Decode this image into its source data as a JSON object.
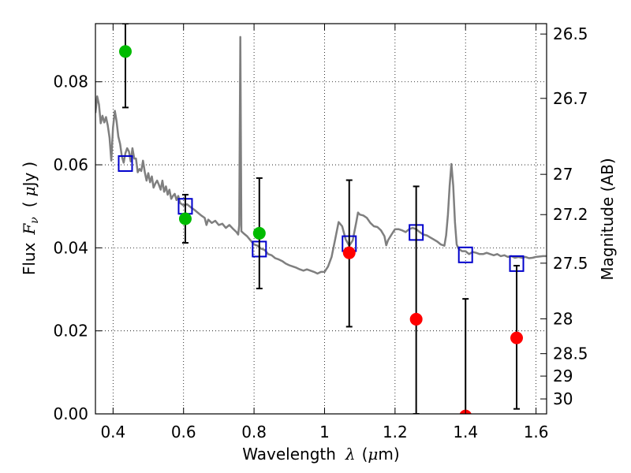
{
  "chart_data": {
    "type": "scatter",
    "xlabel_parts": [
      "Wavelength",
      "λ",
      "(",
      "μ",
      "m)"
    ],
    "ylabel_parts": [
      "Flux",
      "F",
      "ν",
      "(",
      "μ",
      "Jy",
      ")"
    ],
    "y2label": "Magnitude (AB)",
    "xlim": [
      0.35,
      1.63
    ],
    "ylim": [
      0.0,
      0.094
    ],
    "grid": true,
    "x_ticks": [
      {
        "value": 0.4,
        "label": "0.4"
      },
      {
        "value": 0.6,
        "label": "0.6"
      },
      {
        "value": 0.8,
        "label": "0.8"
      },
      {
        "value": 1.0,
        "label": "1"
      },
      {
        "value": 1.2,
        "label": "1.2"
      },
      {
        "value": 1.4,
        "label": "1.4"
      },
      {
        "value": 1.6,
        "label": "1.6"
      }
    ],
    "y_ticks": [
      {
        "value": 0.0,
        "label": "0.00"
      },
      {
        "value": 0.02,
        "label": "0.02"
      },
      {
        "value": 0.04,
        "label": "0.04"
      },
      {
        "value": 0.06,
        "label": "0.06"
      },
      {
        "value": 0.08,
        "label": "0.08"
      }
    ],
    "y2_ticks": [
      {
        "flux": 0.0915,
        "label": "26.5"
      },
      {
        "flux": 0.076,
        "label": "26.7"
      },
      {
        "flux": 0.0577,
        "label": "27"
      },
      {
        "flux": 0.048,
        "label": "27.2"
      },
      {
        "flux": 0.0363,
        "label": "27.5"
      },
      {
        "flux": 0.0229,
        "label": "28"
      },
      {
        "flux": 0.0145,
        "label": "28.5"
      },
      {
        "flux": 0.0091,
        "label": "29"
      },
      {
        "flux": 0.0036,
        "label": "30"
      }
    ],
    "series": [
      {
        "kind": "line",
        "color": "#7f7f7f",
        "points": [
          [
            0.35,
            0.0725
          ],
          [
            0.355,
            0.0765
          ],
          [
            0.36,
            0.0745
          ],
          [
            0.365,
            0.07
          ],
          [
            0.37,
            0.0718
          ],
          [
            0.375,
            0.0702
          ],
          [
            0.38,
            0.0715
          ],
          [
            0.385,
            0.0695
          ],
          [
            0.39,
            0.0665
          ],
          [
            0.395,
            0.061
          ],
          [
            0.4,
            0.069
          ],
          [
            0.405,
            0.073
          ],
          [
            0.41,
            0.0705
          ],
          [
            0.415,
            0.0668
          ],
          [
            0.42,
            0.065
          ],
          [
            0.425,
            0.062
          ],
          [
            0.43,
            0.0605
          ],
          [
            0.435,
            0.0628
          ],
          [
            0.44,
            0.064
          ],
          [
            0.445,
            0.0632
          ],
          [
            0.45,
            0.0608
          ],
          [
            0.455,
            0.064
          ],
          [
            0.46,
            0.0615
          ],
          [
            0.465,
            0.0615
          ],
          [
            0.47,
            0.0582
          ],
          [
            0.475,
            0.059
          ],
          [
            0.48,
            0.0585
          ],
          [
            0.485,
            0.061
          ],
          [
            0.49,
            0.0582
          ],
          [
            0.495,
            0.0562
          ],
          [
            0.5,
            0.058
          ],
          [
            0.505,
            0.0558
          ],
          [
            0.51,
            0.0572
          ],
          [
            0.515,
            0.0545
          ],
          [
            0.52,
            0.0555
          ],
          [
            0.525,
            0.0562
          ],
          [
            0.53,
            0.0552
          ],
          [
            0.535,
            0.054
          ],
          [
            0.54,
            0.0562
          ],
          [
            0.545,
            0.0535
          ],
          [
            0.55,
            0.0548
          ],
          [
            0.555,
            0.0528
          ],
          [
            0.56,
            0.054
          ],
          [
            0.565,
            0.0518
          ],
          [
            0.57,
            0.0525
          ],
          [
            0.575,
            0.053
          ],
          [
            0.58,
            0.0515
          ],
          [
            0.585,
            0.0525
          ],
          [
            0.59,
            0.0508
          ],
          [
            0.6,
            0.0502
          ],
          [
            0.61,
            0.0505
          ],
          [
            0.62,
            0.0498
          ],
          [
            0.63,
            0.0492
          ],
          [
            0.64,
            0.0485
          ],
          [
            0.65,
            0.0478
          ],
          [
            0.66,
            0.0472
          ],
          [
            0.665,
            0.0455
          ],
          [
            0.67,
            0.0468
          ],
          [
            0.68,
            0.046
          ],
          [
            0.69,
            0.0465
          ],
          [
            0.7,
            0.0455
          ],
          [
            0.71,
            0.0458
          ],
          [
            0.72,
            0.0448
          ],
          [
            0.73,
            0.0455
          ],
          [
            0.74,
            0.0446
          ],
          [
            0.75,
            0.0438
          ],
          [
            0.755,
            0.0432
          ],
          [
            0.758,
            0.0455
          ],
          [
            0.761,
            0.0908
          ],
          [
            0.764,
            0.044
          ],
          [
            0.77,
            0.0435
          ],
          [
            0.78,
            0.0428
          ],
          [
            0.79,
            0.0418
          ],
          [
            0.8,
            0.0408
          ],
          [
            0.81,
            0.0405
          ],
          [
            0.82,
            0.0398
          ],
          [
            0.83,
            0.0395
          ],
          [
            0.84,
            0.0385
          ],
          [
            0.85,
            0.0382
          ],
          [
            0.86,
            0.0375
          ],
          [
            0.87,
            0.0372
          ],
          [
            0.88,
            0.0368
          ],
          [
            0.89,
            0.0362
          ],
          [
            0.9,
            0.0358
          ],
          [
            0.91,
            0.0355
          ],
          [
            0.92,
            0.0352
          ],
          [
            0.93,
            0.0348
          ],
          [
            0.94,
            0.0345
          ],
          [
            0.95,
            0.0348
          ],
          [
            0.96,
            0.0345
          ],
          [
            0.97,
            0.0342
          ],
          [
            0.98,
            0.0338
          ],
          [
            0.99,
            0.0342
          ],
          [
            1.0,
            0.0342
          ],
          [
            1.01,
            0.0355
          ],
          [
            1.02,
            0.0378
          ],
          [
            1.03,
            0.042
          ],
          [
            1.04,
            0.0462
          ],
          [
            1.05,
            0.0452
          ],
          [
            1.06,
            0.042
          ],
          [
            1.07,
            0.0405
          ],
          [
            1.08,
            0.0418
          ],
          [
            1.09,
            0.0462
          ],
          [
            1.095,
            0.0485
          ],
          [
            1.1,
            0.048
          ],
          [
            1.11,
            0.0478
          ],
          [
            1.12,
            0.0472
          ],
          [
            1.13,
            0.046
          ],
          [
            1.14,
            0.0452
          ],
          [
            1.15,
            0.045
          ],
          [
            1.16,
            0.0442
          ],
          [
            1.17,
            0.0428
          ],
          [
            1.175,
            0.0406
          ],
          [
            1.18,
            0.0418
          ],
          [
            1.19,
            0.0432
          ],
          [
            1.2,
            0.0445
          ],
          [
            1.21,
            0.0445
          ],
          [
            1.22,
            0.0442
          ],
          [
            1.23,
            0.0438
          ],
          [
            1.24,
            0.0445
          ],
          [
            1.25,
            0.0448
          ],
          [
            1.26,
            0.0445
          ],
          [
            1.27,
            0.0438
          ],
          [
            1.28,
            0.0432
          ],
          [
            1.29,
            0.043
          ],
          [
            1.3,
            0.0425
          ],
          [
            1.31,
            0.042
          ],
          [
            1.32,
            0.0415
          ],
          [
            1.33,
            0.0408
          ],
          [
            1.34,
            0.0405
          ],
          [
            1.345,
            0.043
          ],
          [
            1.35,
            0.048
          ],
          [
            1.355,
            0.055
          ],
          [
            1.36,
            0.0602
          ],
          [
            1.365,
            0.055
          ],
          [
            1.37,
            0.0462
          ],
          [
            1.375,
            0.0408
          ],
          [
            1.38,
            0.0398
          ],
          [
            1.39,
            0.0392
          ],
          [
            1.4,
            0.0392
          ],
          [
            1.41,
            0.0385
          ],
          [
            1.42,
            0.039
          ],
          [
            1.43,
            0.0388
          ],
          [
            1.44,
            0.0385
          ],
          [
            1.45,
            0.0385
          ],
          [
            1.46,
            0.0388
          ],
          [
            1.47,
            0.0385
          ],
          [
            1.48,
            0.0382
          ],
          [
            1.49,
            0.0385
          ],
          [
            1.5,
            0.038
          ],
          [
            1.51,
            0.0382
          ],
          [
            1.52,
            0.0378
          ],
          [
            1.53,
            0.038
          ],
          [
            1.54,
            0.0376
          ],
          [
            1.55,
            0.0378
          ],
          [
            1.56,
            0.0376
          ],
          [
            1.57,
            0.0378
          ],
          [
            1.58,
            0.0375
          ],
          [
            1.59,
            0.0376
          ],
          [
            1.6,
            0.0378
          ],
          [
            1.61,
            0.0379
          ],
          [
            1.62,
            0.038
          ],
          [
            1.63,
            0.038
          ]
        ]
      },
      {
        "kind": "model-box",
        "color": "#0000cc",
        "points": [
          {
            "x": 0.435,
            "y": 0.0603
          },
          {
            "x": 0.605,
            "y": 0.05
          },
          {
            "x": 0.815,
            "y": 0.0397
          },
          {
            "x": 1.07,
            "y": 0.041
          },
          {
            "x": 1.26,
            "y": 0.0437
          },
          {
            "x": 1.4,
            "y": 0.0383
          },
          {
            "x": 1.545,
            "y": 0.0362
          }
        ]
      },
      {
        "kind": "errorbar",
        "color": "#000000",
        "bars": [
          {
            "x": 0.435,
            "low": 0.0738,
            "high": 0.094
          },
          {
            "x": 0.605,
            "low": 0.0412,
            "high": 0.0528
          },
          {
            "x": 0.815,
            "low": 0.0302,
            "high": 0.0568
          },
          {
            "x": 1.07,
            "low": 0.021,
            "high": 0.0563
          },
          {
            "x": 1.26,
            "low": 0.0,
            "high": 0.0548
          },
          {
            "x": 1.4,
            "low": 0.0,
            "high": 0.0277
          },
          {
            "x": 1.545,
            "low": 0.0012,
            "high": 0.0357
          }
        ]
      },
      {
        "kind": "detection",
        "color": "#00bb00",
        "points": [
          {
            "x": 0.435,
            "y": 0.0873
          },
          {
            "x": 0.605,
            "y": 0.047
          },
          {
            "x": 0.815,
            "y": 0.0435
          }
        ]
      },
      {
        "kind": "detection",
        "color": "#ff0000",
        "points": [
          {
            "x": 1.07,
            "y": 0.0388
          },
          {
            "x": 1.26,
            "y": 0.0228
          },
          {
            "x": 1.4,
            "y": -0.0005
          },
          {
            "x": 1.545,
            "y": 0.0183
          }
        ]
      }
    ]
  }
}
